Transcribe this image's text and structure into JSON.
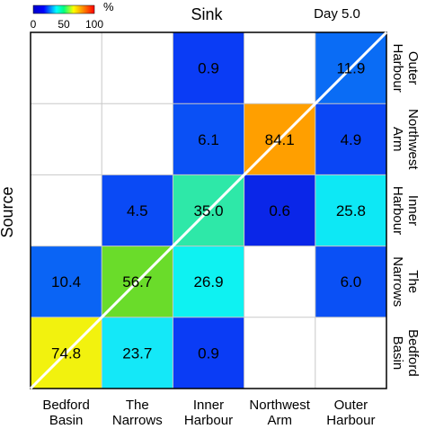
{
  "chart_data": {
    "type": "heatmap",
    "title": "Sink",
    "subtitle": "Day 5.0",
    "xlabel": "",
    "ylabel": "Source",
    "colorbar": {
      "unit": "%",
      "ticks": [
        "0",
        "50",
        "100"
      ],
      "range": [
        0,
        100
      ],
      "colors": [
        "#0000c8",
        "#0000ff",
        "#00ffff",
        "#00ff80",
        "#ffff00",
        "#ff8000",
        "#ff0000"
      ]
    },
    "columns": [
      {
        "line1": "Bedford",
        "line2": "Basin"
      },
      {
        "line1": "The",
        "line2": "Narrows"
      },
      {
        "line1": "Inner",
        "line2": "Harbour"
      },
      {
        "line1": "Northwest",
        "line2": "Arm"
      },
      {
        "line1": "Outer",
        "line2": "Harbour"
      }
    ],
    "rows": [
      {
        "line1": "Outer",
        "line2": "Harbour"
      },
      {
        "line1": "Northwest",
        "line2": "Arm"
      },
      {
        "line1": "Inner",
        "line2": "Harbour"
      },
      {
        "line1": "The",
        "line2": "Narrows"
      },
      {
        "line1": "Bedford",
        "line2": "Basin"
      }
    ],
    "cells": [
      [
        null,
        null,
        {
          "value": 0.9,
          "label": "0.9",
          "color": "#0a3cf5"
        },
        null,
        {
          "value": 11.9,
          "label": "11.9",
          "color": "#0a6cf5"
        }
      ],
      [
        null,
        null,
        {
          "value": 6.1,
          "label": "6.1",
          "color": "#0a50f5"
        },
        {
          "value": 84.1,
          "label": "84.1",
          "color": "#ff9f00"
        },
        {
          "value": 4.9,
          "label": "4.9",
          "color": "#0a46f5"
        }
      ],
      [
        null,
        {
          "value": 4.5,
          "label": "4.5",
          "color": "#0a4af5"
        },
        {
          "value": 35.0,
          "label": "35.0",
          "color": "#2ee8a8"
        },
        {
          "value": 0.6,
          "label": "0.6",
          "color": "#0a26e8"
        },
        {
          "value": 25.8,
          "label": "25.8",
          "color": "#0de8f5"
        }
      ],
      [
        {
          "value": 10.4,
          "label": "10.4",
          "color": "#0a64f5"
        },
        {
          "value": 56.7,
          "label": "56.7",
          "color": "#6adc2a"
        },
        {
          "value": 26.9,
          "label": "26.9",
          "color": "#0ef2f2"
        },
        null,
        {
          "value": 6.0,
          "label": "6.0",
          "color": "#0a50f5"
        }
      ],
      [
        {
          "value": 74.8,
          "label": "74.8",
          "color": "#f2f20e"
        },
        {
          "value": 23.7,
          "label": "23.7",
          "color": "#14e8f8"
        },
        {
          "value": 0.9,
          "label": "0.9",
          "color": "#0a3cf5"
        },
        null,
        null
      ]
    ],
    "grid": true,
    "diagonal_line_color": "#ffffff"
  }
}
